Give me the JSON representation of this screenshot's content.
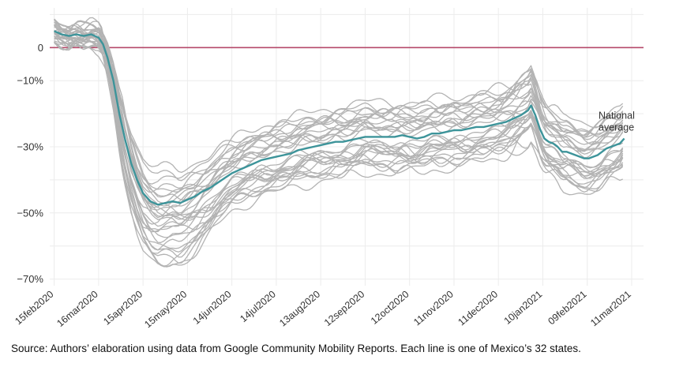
{
  "chart_data": {
    "type": "line",
    "title": "",
    "xlabel": "",
    "ylabel": "",
    "ylim": [
      -72,
      12
    ],
    "y_ticks": [
      0,
      -10,
      -30,
      -50,
      -70
    ],
    "y_tick_labels": [
      "0",
      "−10%",
      "−30%",
      "−50%",
      "−70%"
    ],
    "x_tick_labels": [
      "15feb2020",
      "16mar2020",
      "15apr2020",
      "15may2020",
      "14jun2020",
      "14jul2020",
      "13aug2020",
      "12sep2020",
      "12oct2020",
      "11nov2020",
      "11dec2020",
      "10jan2021",
      "09feb2021",
      "11mar2021"
    ],
    "x_tick_days": [
      0,
      30,
      60,
      90,
      120,
      150,
      180,
      210,
      240,
      270,
      300,
      330,
      360,
      390
    ],
    "xlim_days": [
      -3,
      398
    ],
    "reference_line": {
      "y": 0,
      "color": "#b5496a"
    },
    "national_series": {
      "name": "National average",
      "color": "#3d949a",
      "x_days": [
        0,
        5,
        10,
        15,
        20,
        25,
        30,
        33,
        36,
        40,
        44,
        48,
        52,
        56,
        60,
        65,
        70,
        75,
        80,
        85,
        90,
        95,
        100,
        105,
        110,
        115,
        120,
        125,
        130,
        135,
        140,
        145,
        150,
        155,
        160,
        165,
        170,
        175,
        180,
        185,
        190,
        195,
        200,
        205,
        210,
        215,
        220,
        225,
        230,
        235,
        240,
        245,
        250,
        255,
        260,
        265,
        270,
        275,
        280,
        285,
        290,
        295,
        300,
        305,
        310,
        315,
        320,
        322,
        325,
        328,
        331,
        334,
        337,
        340,
        343,
        346,
        349,
        352,
        355,
        358,
        361,
        364,
        367,
        370,
        373,
        376,
        379,
        382,
        385
      ],
      "values": [
        5,
        4,
        3.5,
        4,
        3.5,
        4,
        3,
        1,
        -3,
        -10,
        -20,
        -28,
        -35,
        -40,
        -44,
        -46.5,
        -47.5,
        -47,
        -46.5,
        -47,
        -46,
        -45,
        -43.5,
        -42.5,
        -41,
        -39.5,
        -38,
        -37,
        -36,
        -35,
        -34,
        -33.5,
        -33,
        -32.5,
        -32,
        -31,
        -30.5,
        -30,
        -29.5,
        -29,
        -28.5,
        -28.5,
        -28,
        -27.5,
        -27,
        -27,
        -27,
        -27,
        -27,
        -26.5,
        -27,
        -27.5,
        -27,
        -26,
        -26,
        -25.5,
        -25,
        -25,
        -24.5,
        -24,
        -24,
        -23.5,
        -23,
        -22.5,
        -21.5,
        -20.5,
        -19,
        -17.5,
        -20.5,
        -24.5,
        -27.5,
        -28.5,
        -29,
        -30,
        -31.5,
        -31.5,
        -32,
        -32.5,
        -33,
        -33.5,
        -33.5,
        -33,
        -32.5,
        -31.5,
        -30.5,
        -30,
        -29.5,
        -29,
        -27.5
      ]
    },
    "state_series_count": 32,
    "state_series_color": "#b3b3b3",
    "annotations": [
      {
        "text_lines": [
          "National",
          "average"
        ],
        "at_series": "National average"
      }
    ]
  },
  "source_note": "Source: Authors’ elaboration using data from Google Community Mobility Reports. Each line is one of Mexico’s 32 states."
}
